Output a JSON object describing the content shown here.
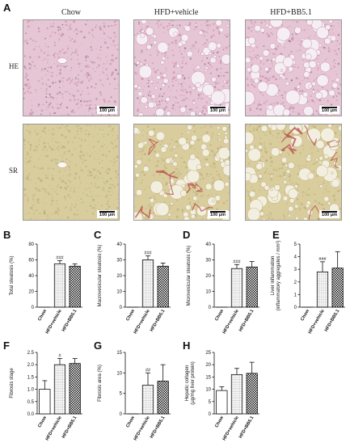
{
  "figure": {
    "panel_a_letter": "A",
    "columns": [
      "Chow",
      "HFD+vehicle",
      "HFD+BB5.1"
    ],
    "rows": [
      "HE",
      "SR"
    ],
    "scale_bar_text": "100 μm",
    "colors": {
      "he_background": "#e6c6d4",
      "he_dense": "#c993b0",
      "he_vacuole": "#f5eef2",
      "sr_background": "#d9cd9e",
      "sr_dense": "#bfb07a",
      "sr_vacuole": "#f3efe0",
      "sr_fiber": "#b8524a",
      "bar_outline": "#111111"
    }
  },
  "chart_data": [
    {
      "id": "B",
      "type": "bar",
      "categories": [
        "Chow",
        "HFD+vehicle",
        "HFD+BB5.1"
      ],
      "values": [
        0,
        55,
        52
      ],
      "errors": [
        0,
        4,
        3
      ],
      "sig": [
        "",
        "###",
        ""
      ],
      "ylabel": "Total steatosis (%)",
      "ylim": [
        0,
        80
      ],
      "yticks": [
        0,
        20,
        40,
        60,
        80
      ]
    },
    {
      "id": "C",
      "type": "bar",
      "categories": [
        "Chow",
        "HFD+vehicle",
        "HFD+BB5.1"
      ],
      "values": [
        0,
        30,
        26
      ],
      "errors": [
        0,
        2.5,
        2
      ],
      "sig": [
        "",
        "###",
        ""
      ],
      "ylabel": "Macrovesicular steatosis (%)",
      "ylim": [
        0,
        40
      ],
      "yticks": [
        0,
        10,
        20,
        30,
        40
      ]
    },
    {
      "id": "D",
      "type": "bar",
      "categories": [
        "Chow",
        "HFD+vehicle",
        "HFD+BB5.1"
      ],
      "values": [
        0,
        24.5,
        25.5
      ],
      "errors": [
        0,
        2.5,
        3.5
      ],
      "sig": [
        "",
        "###",
        ""
      ],
      "ylabel": "Microvesicular steatosis (%)",
      "ylim": [
        0,
        40
      ],
      "yticks": [
        0,
        10,
        20,
        30,
        40
      ]
    },
    {
      "id": "E",
      "type": "bar",
      "categories": [
        "Chow",
        "HFD+vehicle",
        "HFD+BB5.1"
      ],
      "values": [
        0,
        2.8,
        3.1
      ],
      "errors": [
        0,
        0.8,
        1.3
      ],
      "sig": [
        "",
        "###",
        ""
      ],
      "ylabel": "Liver inflammation (inflammatory aggregates / mm²)",
      "ylabel_lines": [
        "Liver inflammation",
        "(inflammatory aggregates / mm²)"
      ],
      "ylim": [
        0,
        5
      ],
      "yticks": [
        0,
        1,
        2,
        3,
        4,
        5
      ]
    },
    {
      "id": "F",
      "type": "bar",
      "categories": [
        "Chow",
        "HFD+vehicle",
        "HFD+BB5.1"
      ],
      "values": [
        1.0,
        2.0,
        2.05
      ],
      "errors": [
        0.35,
        0.25,
        0.2
      ],
      "sig": [
        "",
        "#",
        ""
      ],
      "ylabel": "Fibrosis stage",
      "ylim": [
        0,
        2.5
      ],
      "yticks": [
        0.0,
        0.5,
        1.0,
        1.5,
        2.0,
        2.5
      ]
    },
    {
      "id": "G",
      "type": "bar",
      "categories": [
        "Chow",
        "HFD+vehicle",
        "HFD+BB5.1"
      ],
      "values": [
        0,
        7,
        8
      ],
      "errors": [
        0,
        3,
        4
      ],
      "sig": [
        "",
        "##",
        ""
      ],
      "ylabel": "Fibrosis area (%)",
      "ylim": [
        0,
        15
      ],
      "yticks": [
        0,
        5,
        10,
        15
      ]
    },
    {
      "id": "H",
      "type": "bar",
      "categories": [
        "Chow",
        "HFD+vehicle",
        "HFD+BB5.1"
      ],
      "values": [
        9.5,
        16,
        16.5
      ],
      "errors": [
        1.5,
        2.5,
        4.5
      ],
      "sig": [
        "",
        "",
        ""
      ],
      "ylabel": "Hepatic collagen (μg/mg liver protein)",
      "ylabel_lines": [
        "Hepatic collagen",
        "(μg/mg liver protein)"
      ],
      "ylim": [
        0,
        25
      ],
      "yticks": [
        0,
        5,
        10,
        15,
        20,
        25
      ]
    }
  ]
}
